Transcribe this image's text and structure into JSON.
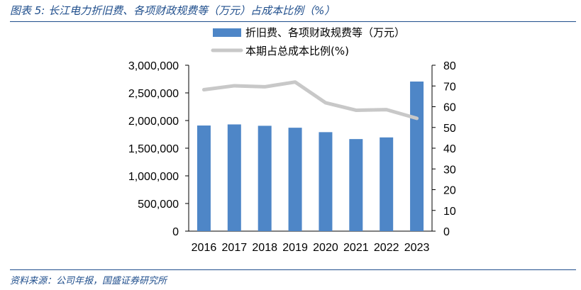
{
  "figure": {
    "title": "图表 5:  长江电力折旧费、各项财政规费等（万元）占成本比例（%）",
    "source": "资料来源：公司年报，国盛证券研究所"
  },
  "colors": {
    "bar": "#4e86c7",
    "line": "#c8c8c8",
    "rule": "#1f4e8c"
  },
  "chart_data": {
    "type": "bar+line",
    "categories": [
      "2016",
      "2017",
      "2018",
      "2019",
      "2020",
      "2021",
      "2022",
      "2023"
    ],
    "series": [
      {
        "name": "折旧费、各项财政规费等（万元）",
        "type": "bar",
        "axis": "left",
        "values": [
          1910000,
          1930000,
          1905000,
          1870000,
          1790000,
          1665000,
          1695000,
          2705000
        ]
      },
      {
        "name": "本期占总成本比例(%)",
        "type": "line",
        "axis": "right",
        "values": [
          68.2,
          70.1,
          69.6,
          71.9,
          61.9,
          58.3,
          58.6,
          54.4
        ]
      }
    ],
    "y_left": {
      "min": 0,
      "max": 3000000,
      "ticks": [
        "0",
        "500,000",
        "1,000,000",
        "1,500,000",
        "2,000,000",
        "2,500,000",
        "3,000,000"
      ]
    },
    "y_right": {
      "min": 0,
      "max": 80,
      "ticks": [
        "0",
        "10",
        "20",
        "30",
        "40",
        "50",
        "60",
        "70",
        "80"
      ]
    },
    "legend_position": "top"
  }
}
